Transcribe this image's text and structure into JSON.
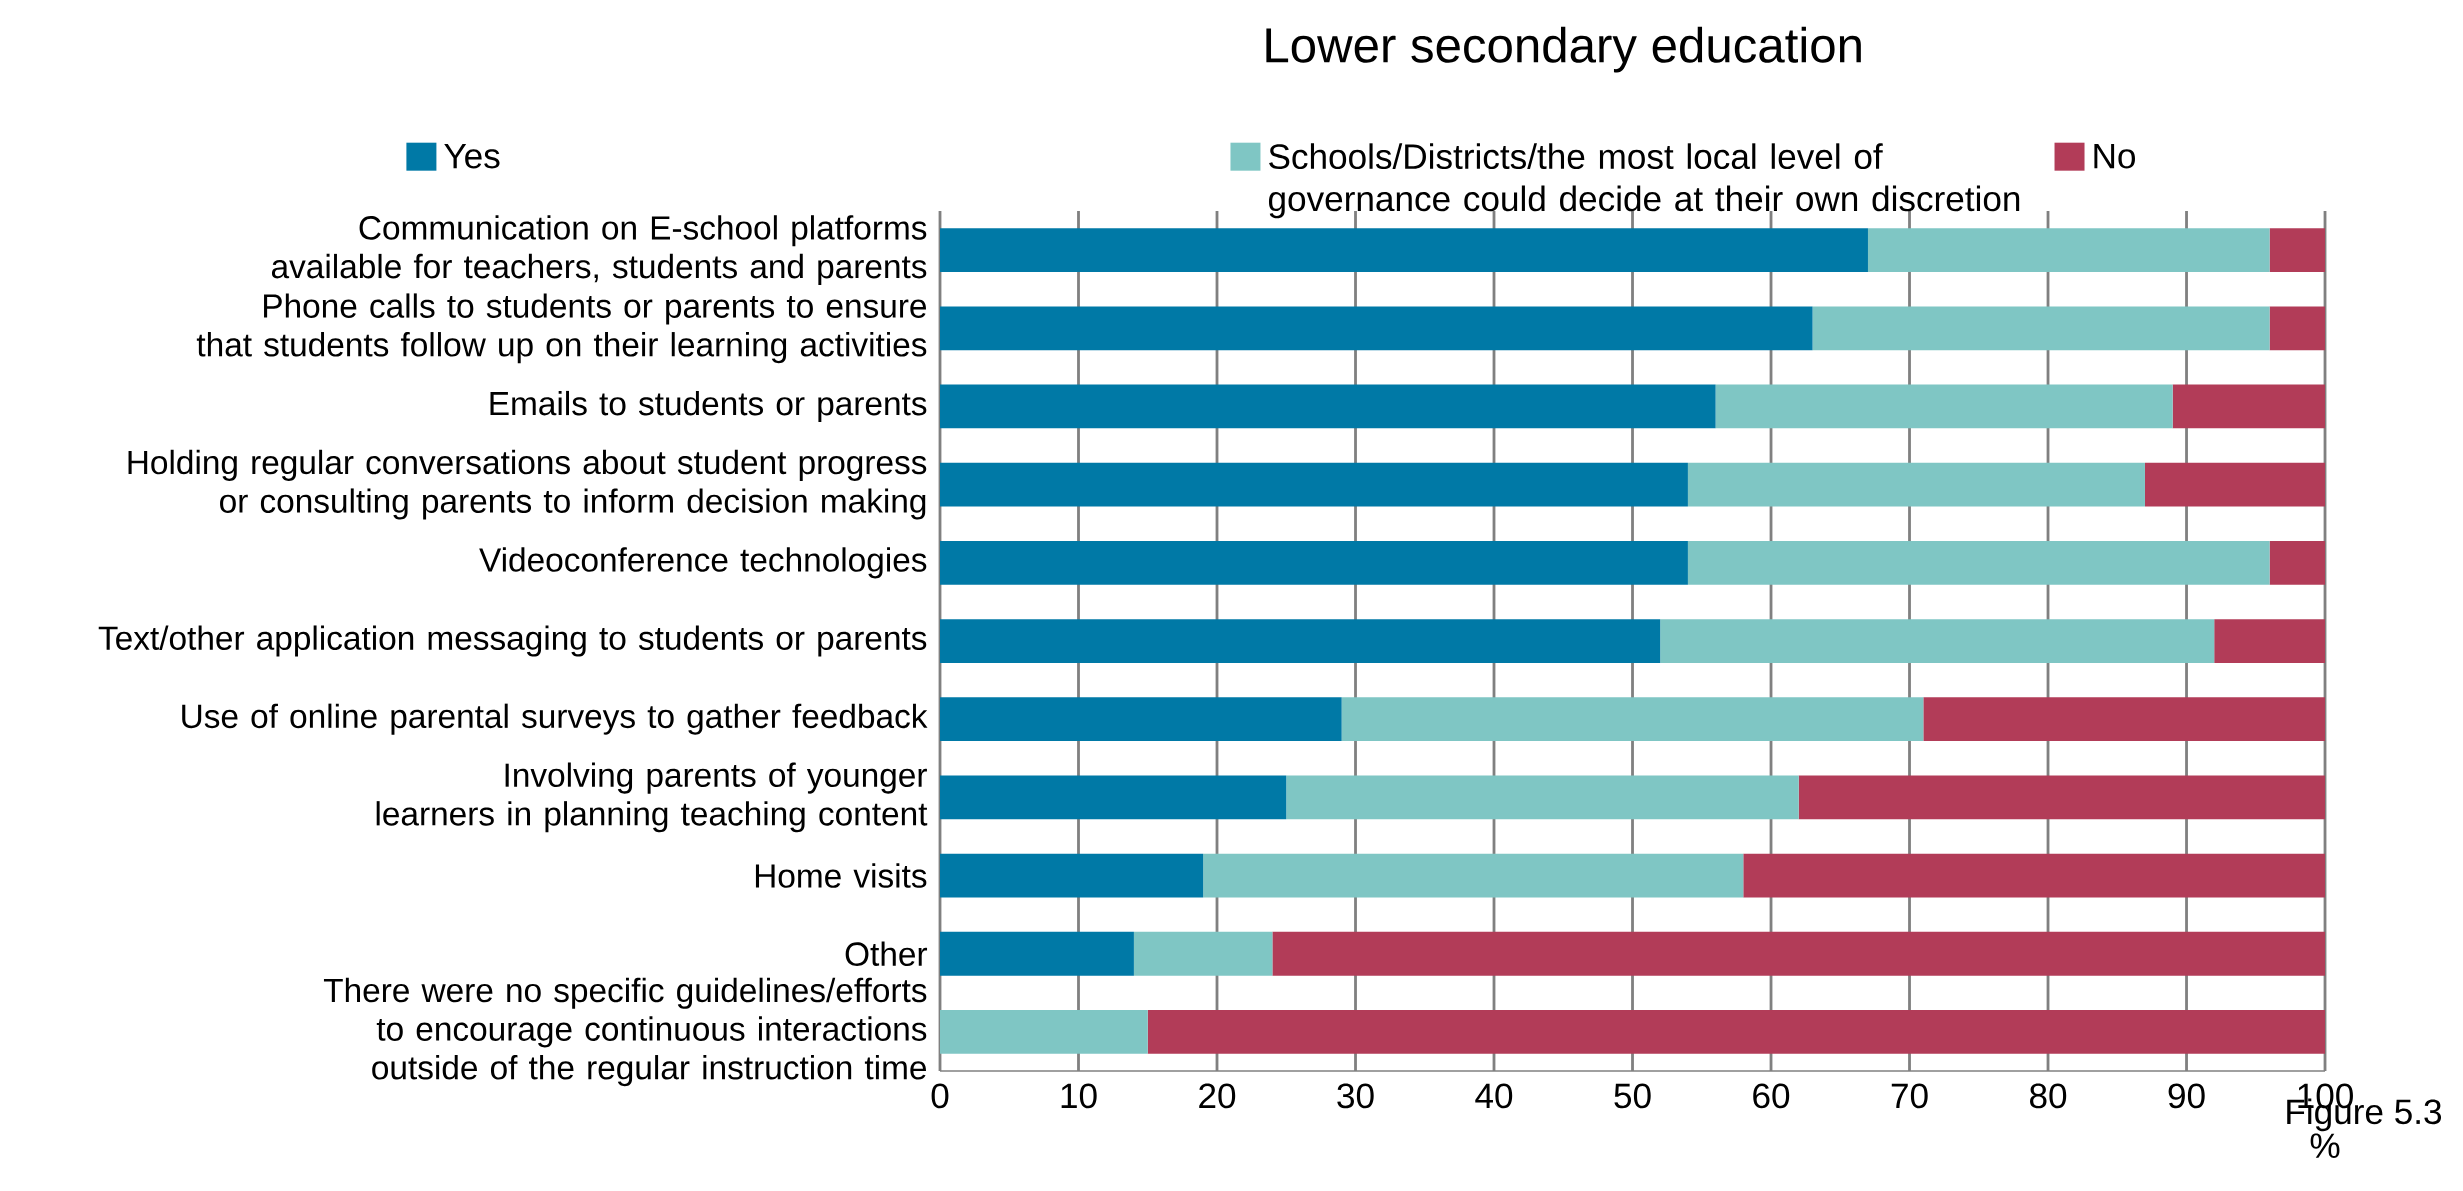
{
  "chart_data": {
    "type": "bar",
    "orientation": "horizontal",
    "stacked": true,
    "title": "Lower secondary education",
    "xlabel": "%",
    "categories": [
      "Communication on E-school platforms available for teachers, students and parents",
      "Phone calls to students or parents to ensure that students follow up on their learning activities",
      "Emails to students or parents",
      "Holding regular conversations about student progress or consulting parents to inform decision making",
      "Videoconference technologies",
      "Text/other application messaging to students or parents",
      "Use of online parental surveys to gather feedback",
      "Involving parents of younger learners in planning teaching content",
      "Home visits",
      "Other",
      "There were no specific guidelines/efforts to encourage continuous interactions outside of the regular instruction time"
    ],
    "series": [
      {
        "name": "Yes",
        "color": "#0079a6",
        "values": [
          67,
          63,
          56,
          54,
          54,
          52,
          29,
          25,
          19,
          14,
          0
        ]
      },
      {
        "name": "Schools/Districts/the most local level of governance could decide at their own discretion",
        "color": "#7fc6c4",
        "values": [
          29,
          33,
          33,
          33,
          42,
          40,
          42,
          37,
          39,
          10,
          15
        ]
      },
      {
        "name": "No",
        "color": "#b23c58",
        "values": [
          4,
          4,
          11,
          13,
          4,
          8,
          29,
          38,
          42,
          76,
          85
        ]
      }
    ],
    "xlim": [
      0,
      100
    ],
    "xticks": [
      0,
      10,
      20,
      30,
      40,
      50,
      60,
      70,
      80,
      90,
      100
    ],
    "grid": "x",
    "legend": "top",
    "annotations": [
      "Figure 5.3"
    ]
  }
}
